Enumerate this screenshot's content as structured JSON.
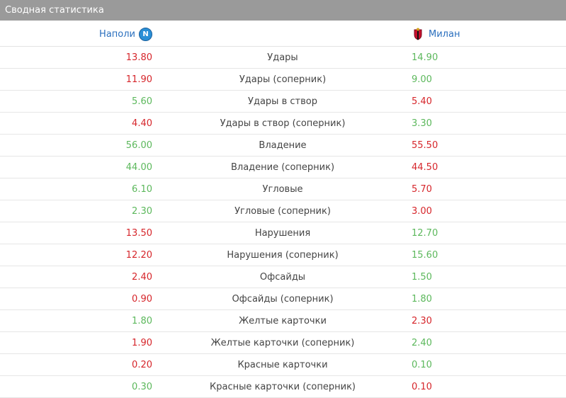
{
  "header": {
    "title": "Сводная статистика"
  },
  "teams": {
    "home": {
      "name": "Наполи",
      "logo_icon": "napoli-crest-icon"
    },
    "away": {
      "name": "Милан",
      "logo_icon": "milan-crest-icon"
    }
  },
  "colors": {
    "better": "#5cb85c",
    "worse": "#d6262b",
    "link": "#2a6fbe",
    "header_bg": "#9a9a9a"
  },
  "stats": [
    {
      "name": "Удары",
      "home": "13.80",
      "away": "14.90",
      "home_color": "red",
      "away_color": "green"
    },
    {
      "name": "Удары (соперник)",
      "home": "11.90",
      "away": "9.00",
      "home_color": "red",
      "away_color": "green"
    },
    {
      "name": "Удары в створ",
      "home": "5.60",
      "away": "5.40",
      "home_color": "green",
      "away_color": "red"
    },
    {
      "name": "Удары в створ (соперник)",
      "home": "4.40",
      "away": "3.30",
      "home_color": "red",
      "away_color": "green"
    },
    {
      "name": "Владение",
      "home": "56.00",
      "away": "55.50",
      "home_color": "green",
      "away_color": "red"
    },
    {
      "name": "Владение (соперник)",
      "home": "44.00",
      "away": "44.50",
      "home_color": "green",
      "away_color": "red"
    },
    {
      "name": "Угловые",
      "home": "6.10",
      "away": "5.70",
      "home_color": "green",
      "away_color": "red"
    },
    {
      "name": "Угловые (соперник)",
      "home": "2.30",
      "away": "3.00",
      "home_color": "green",
      "away_color": "red"
    },
    {
      "name": "Нарушения",
      "home": "13.50",
      "away": "12.70",
      "home_color": "red",
      "away_color": "green"
    },
    {
      "name": "Нарушения (соперник)",
      "home": "12.20",
      "away": "15.60",
      "home_color": "red",
      "away_color": "green"
    },
    {
      "name": "Офсайды",
      "home": "2.40",
      "away": "1.50",
      "home_color": "red",
      "away_color": "green"
    },
    {
      "name": "Офсайды (соперник)",
      "home": "0.90",
      "away": "1.80",
      "home_color": "red",
      "away_color": "green"
    },
    {
      "name": "Желтые карточки",
      "home": "1.80",
      "away": "2.30",
      "home_color": "green",
      "away_color": "red"
    },
    {
      "name": "Желтые карточки (соперник)",
      "home": "1.90",
      "away": "2.40",
      "home_color": "red",
      "away_color": "green"
    },
    {
      "name": "Красные карточки",
      "home": "0.20",
      "away": "0.10",
      "home_color": "red",
      "away_color": "green"
    },
    {
      "name": "Красные карточки (соперник)",
      "home": "0.30",
      "away": "0.10",
      "home_color": "green",
      "away_color": "red"
    }
  ]
}
